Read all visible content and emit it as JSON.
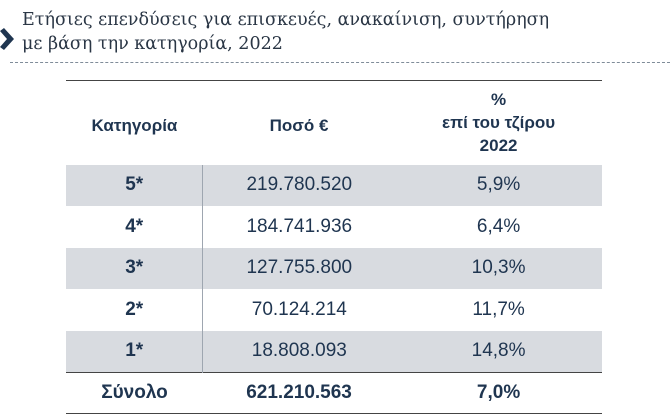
{
  "title": {
    "line1": "Ετήσιες επενδύσεις για επισκευές, ανακαίνιση, συντήρηση",
    "line2": "με βάση την κατηγορία, 2022"
  },
  "icons": {
    "bullet": "arrow-right-icon"
  },
  "colors": {
    "text": "#1f3550",
    "shaded_row": "#d8dbe0"
  },
  "table": {
    "headers": {
      "category": "Κατηγορία",
      "amount": "Ποσό  €",
      "percent_symbol": "%",
      "percent_line1": "επί του τζίρου",
      "percent_line2": "2022"
    },
    "rows": [
      {
        "category": "5*",
        "amount": "219.780.520",
        "percent": "5,9%"
      },
      {
        "category": "4*",
        "amount": "184.741.936",
        "percent": "6,4%"
      },
      {
        "category": "3*",
        "amount": "127.755.800",
        "percent": "10,3%"
      },
      {
        "category": "2*",
        "amount": "70.124.214",
        "percent": "11,7%"
      },
      {
        "category": "1*",
        "amount": "18.808.093",
        "percent": "14,8%"
      }
    ],
    "total": {
      "category": "Σύνολο",
      "amount": "621.210.563",
      "percent": "7,0%"
    }
  }
}
